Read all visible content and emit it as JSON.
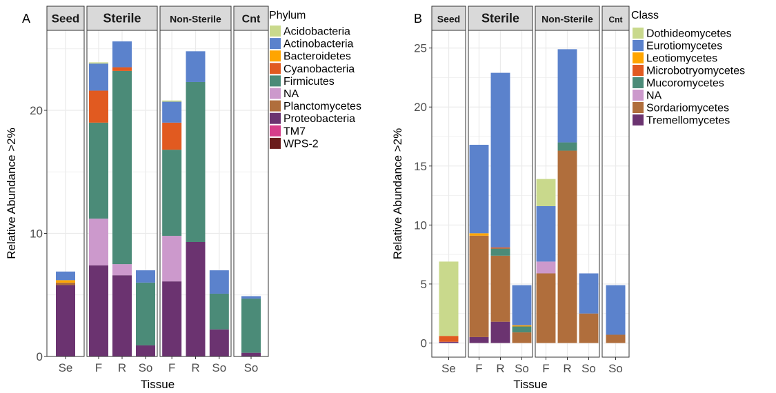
{
  "chart_data": [
    {
      "type": "bar",
      "panel_label": "A",
      "xlabel": "Tissue",
      "ylabel": "Relative Abundance >2%",
      "ylim": [
        0,
        26.5
      ],
      "yticks": [
        0,
        10,
        20
      ],
      "grid": true,
      "legend": {
        "title": "Phylum",
        "placement": "right"
      },
      "colors": {
        "Acidobacteria": "#c9d98c",
        "Actinobacteria": "#5b82cc",
        "Bacteroidetes": "#ffa500",
        "Cyanobacteria": "#e15a20",
        "Firmicutes": "#4b8b78",
        "NA": "#cc99cc",
        "Planctomycetes": "#b06e3c",
        "Proteobacteria": "#6b3370",
        "TM7": "#d63d8a",
        "WPS-2": "#6b1c1c"
      },
      "facets": [
        {
          "name": "Seed",
          "bars": [
            {
              "x": "Se",
              "stack": [
                [
                  "Proteobacteria",
                  5.8
                ],
                [
                  "Planctomycetes",
                  0.2
                ],
                [
                  "Bacteroidetes",
                  0.2
                ],
                [
                  "Actinobacteria",
                  0.7
                ]
              ]
            }
          ]
        },
        {
          "name": "Sterile",
          "bars": [
            {
              "x": "F",
              "stack": [
                [
                  "Proteobacteria",
                  7.4
                ],
                [
                  "NA",
                  3.8
                ],
                [
                  "Firmicutes",
                  7.8
                ],
                [
                  "Cyanobacteria",
                  2.6
                ],
                [
                  "Actinobacteria",
                  2.2
                ],
                [
                  "Acidobacteria",
                  0.1
                ]
              ]
            },
            {
              "x": "R",
              "stack": [
                [
                  "Proteobacteria",
                  6.6
                ],
                [
                  "NA",
                  0.9
                ],
                [
                  "Firmicutes",
                  15.7
                ],
                [
                  "Cyanobacteria",
                  0.3
                ],
                [
                  "Actinobacteria",
                  2.1
                ]
              ]
            },
            {
              "x": "So",
              "stack": [
                [
                  "Proteobacteria",
                  0.9
                ],
                [
                  "Firmicutes",
                  5.1
                ],
                [
                  "Actinobacteria",
                  1.0
                ]
              ]
            }
          ]
        },
        {
          "name": "Non-Sterile",
          "bars": [
            {
              "x": "F",
              "stack": [
                [
                  "Proteobacteria",
                  6.1
                ],
                [
                  "NA",
                  3.7
                ],
                [
                  "Firmicutes",
                  7.0
                ],
                [
                  "Cyanobacteria",
                  2.2
                ],
                [
                  "Actinobacteria",
                  1.7
                ],
                [
                  "Acidobacteria",
                  0.1
                ]
              ]
            },
            {
              "x": "R",
              "stack": [
                [
                  "Proteobacteria",
                  9.3
                ],
                [
                  "Firmicutes",
                  13.0
                ],
                [
                  "Actinobacteria",
                  2.5
                ]
              ]
            },
            {
              "x": "So",
              "stack": [
                [
                  "Proteobacteria",
                  2.2
                ],
                [
                  "Firmicutes",
                  2.9
                ],
                [
                  "Actinobacteria",
                  1.9
                ]
              ]
            }
          ]
        },
        {
          "name": "Cnt",
          "bars": [
            {
              "x": "So",
              "stack": [
                [
                  "Proteobacteria",
                  0.3
                ],
                [
                  "Firmicutes",
                  4.4
                ],
                [
                  "Actinobacteria",
                  0.2
                ]
              ]
            }
          ]
        }
      ]
    },
    {
      "type": "bar",
      "panel_label": "B",
      "xlabel": "Tissue",
      "ylabel": "Relative Abundance >2%",
      "ylim": [
        -1.2,
        26.5
      ],
      "yticks": [
        0,
        5,
        10,
        15,
        20,
        25
      ],
      "grid": true,
      "legend": {
        "title": "Class",
        "placement": "right"
      },
      "colors": {
        "Dothideomycetes": "#c9d98c",
        "Eurotiomycetes": "#5b82cc",
        "Leotiomycetes": "#ffa500",
        "Microbotryomycetes": "#e15a20",
        "Mucoromycetes": "#4b8b78",
        "NA": "#cc99cc",
        "Sordariomycetes": "#b06e3c",
        "Tremellomycetes": "#6b3370"
      },
      "facets": [
        {
          "name": "Seed",
          "bars": [
            {
              "x": "Se",
              "stack": [
                [
                  "Tremellomycetes",
                  0.1
                ],
                [
                  "Microbotryomycetes",
                  0.5
                ],
                [
                  "Dothideomycetes",
                  6.3
                ]
              ]
            }
          ]
        },
        {
          "name": "Sterile",
          "bars": [
            {
              "x": "F",
              "stack": [
                [
                  "Tremellomycetes",
                  0.5
                ],
                [
                  "Sordariomycetes",
                  8.6
                ],
                [
                  "Leotiomycetes",
                  0.2
                ],
                [
                  "Eurotiomycetes",
                  7.5
                ]
              ]
            },
            {
              "x": "R",
              "stack": [
                [
                  "Tremellomycetes",
                  1.8
                ],
                [
                  "Sordariomycetes",
                  5.6
                ],
                [
                  "Mucoromycetes",
                  0.6
                ],
                [
                  "Microbotryomycetes",
                  0.1
                ],
                [
                  "Eurotiomycetes",
                  14.8
                ]
              ]
            },
            {
              "x": "So",
              "stack": [
                [
                  "Sordariomycetes",
                  0.9
                ],
                [
                  "Mucoromycetes",
                  0.5
                ],
                [
                  "Leotiomycetes",
                  0.1
                ],
                [
                  "Eurotiomycetes",
                  3.4
                ]
              ]
            }
          ]
        },
        {
          "name": "Non-Sterile",
          "bars": [
            {
              "x": "F",
              "stack": [
                [
                  "Sordariomycetes",
                  5.9
                ],
                [
                  "NA",
                  1.0
                ],
                [
                  "Eurotiomycetes",
                  4.7
                ],
                [
                  "Dothideomycetes",
                  2.3
                ]
              ]
            },
            {
              "x": "R",
              "stack": [
                [
                  "Sordariomycetes",
                  16.3
                ],
                [
                  "Mucoromycetes",
                  0.7
                ],
                [
                  "Eurotiomycetes",
                  7.9
                ]
              ]
            },
            {
              "x": "So",
              "stack": [
                [
                  "Sordariomycetes",
                  2.5
                ],
                [
                  "Eurotiomycetes",
                  3.4
                ]
              ]
            }
          ]
        },
        {
          "name": "Cnt",
          "bars": [
            {
              "x": "So",
              "stack": [
                [
                  "Sordariomycetes",
                  0.7
                ],
                [
                  "Eurotiomycetes",
                  4.2
                ]
              ]
            }
          ]
        }
      ]
    }
  ]
}
